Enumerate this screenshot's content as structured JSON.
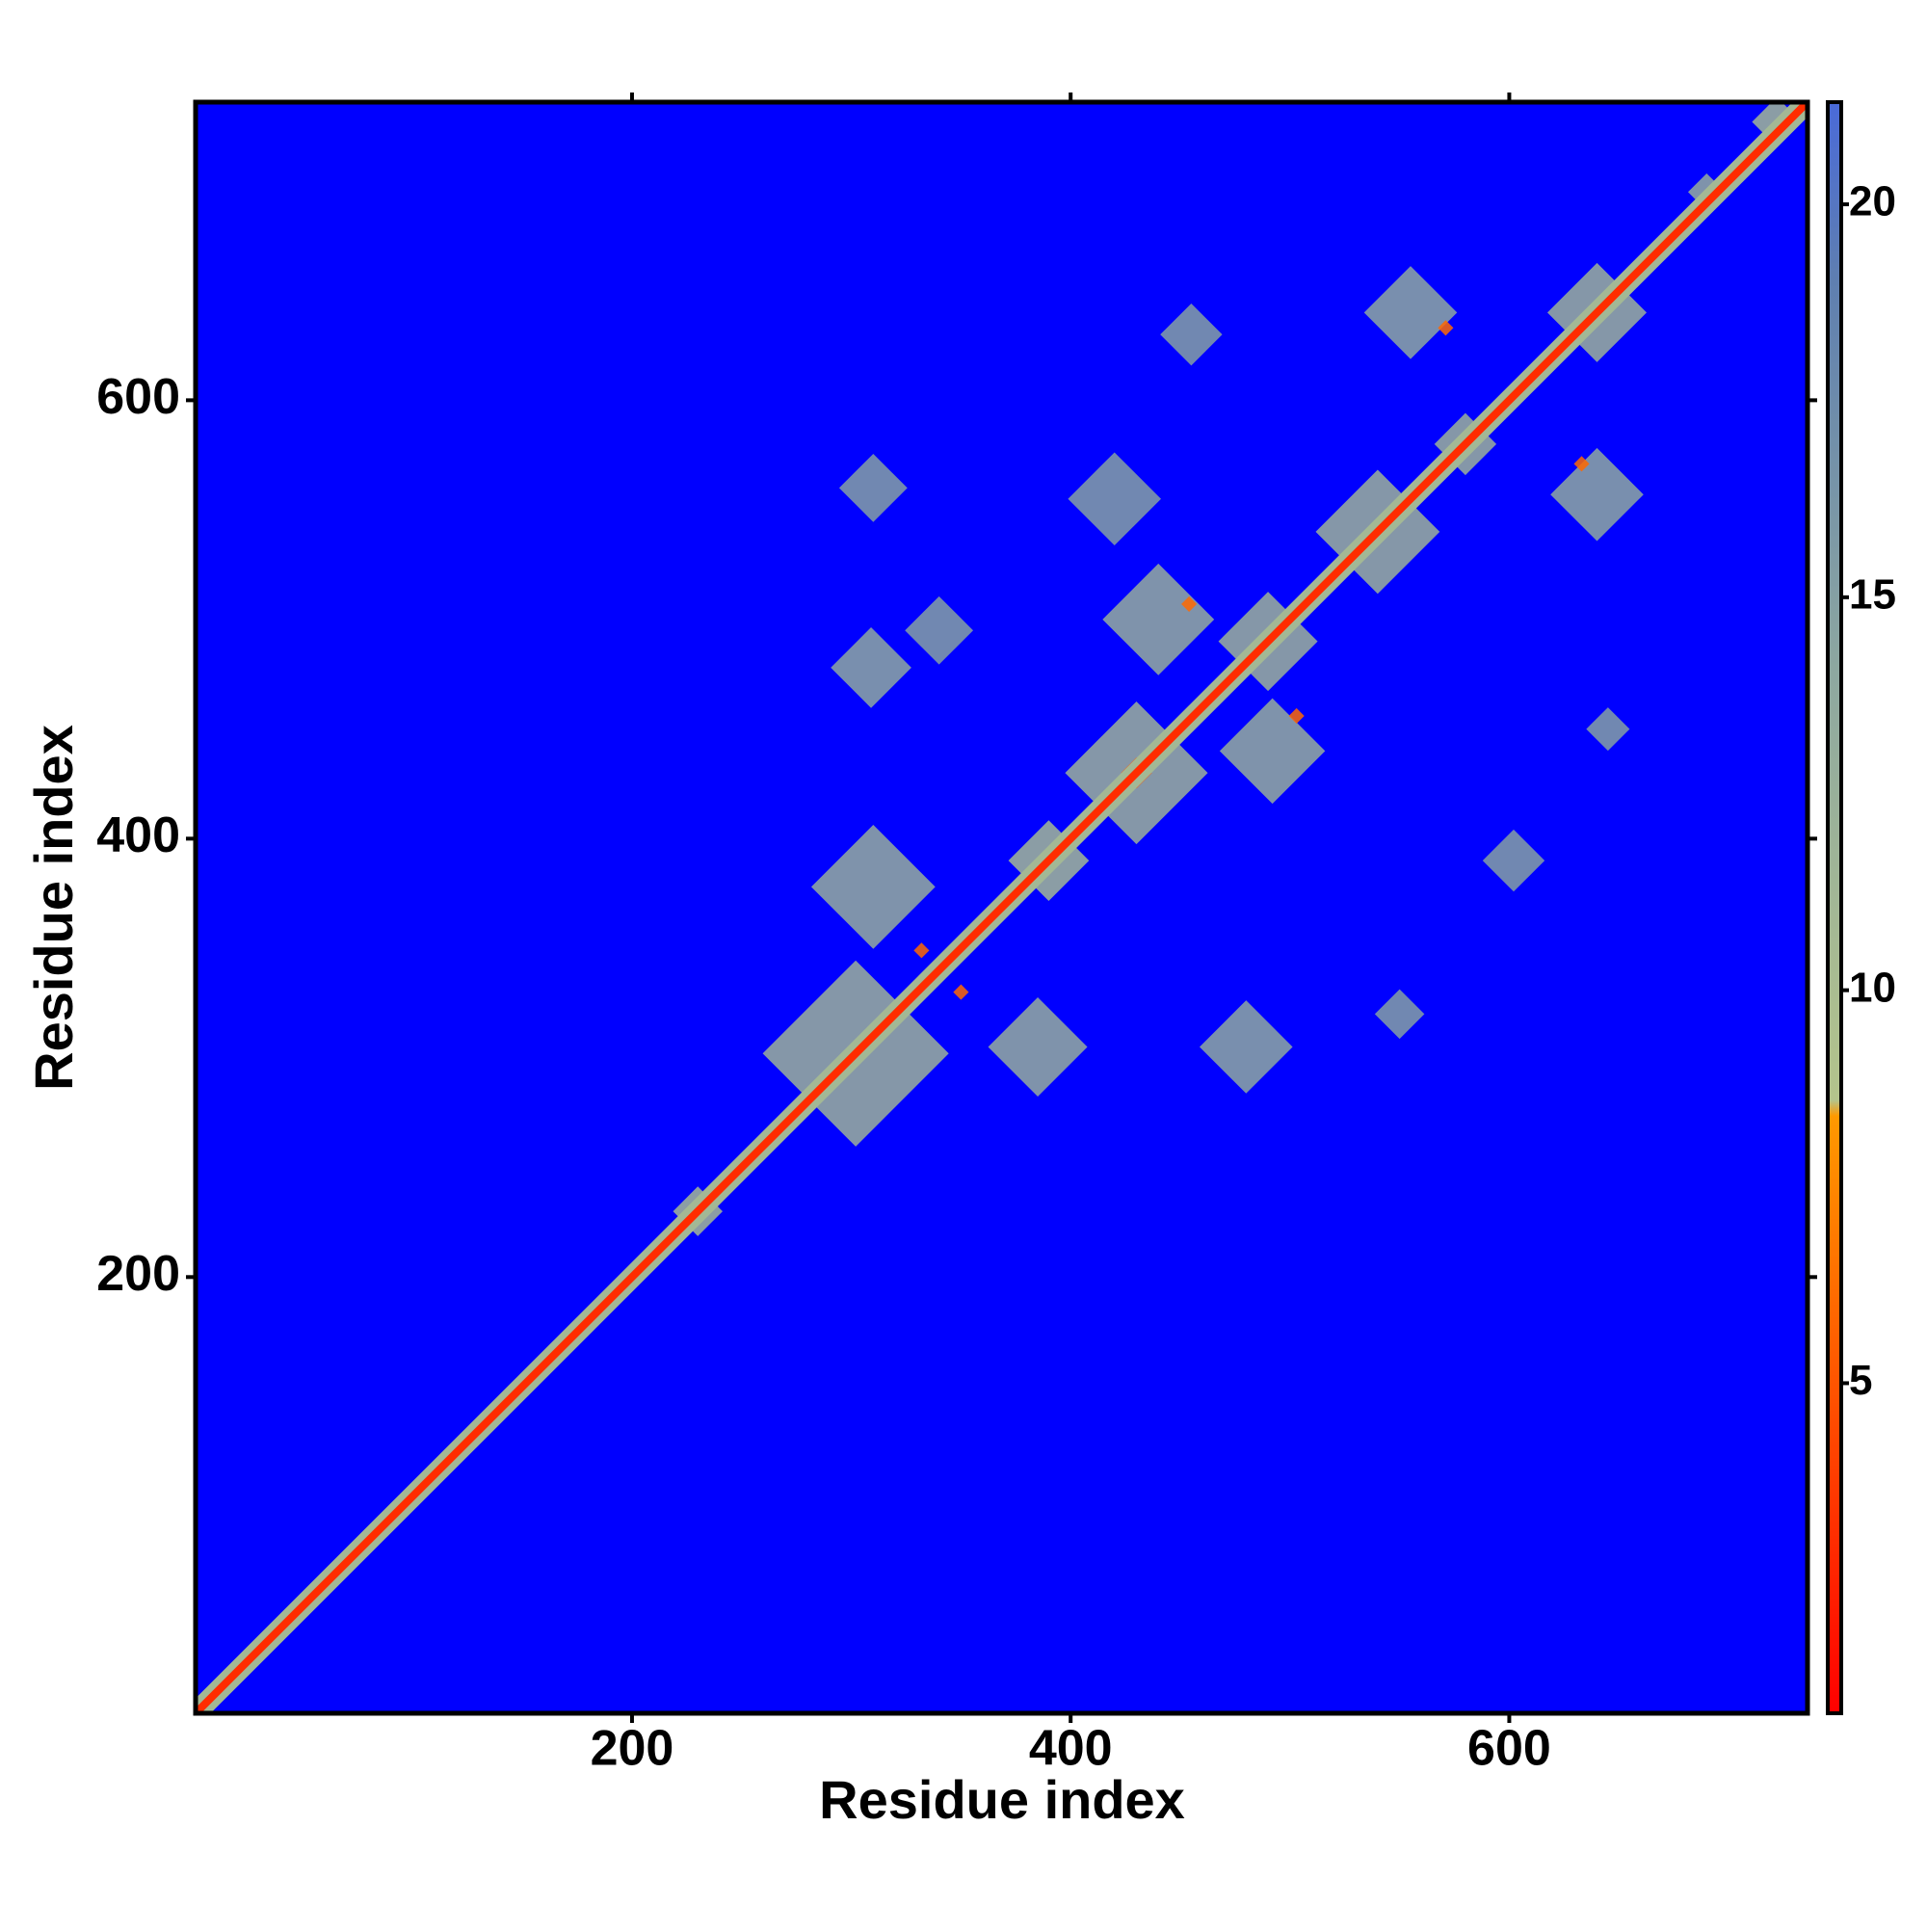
{
  "chart_data": {
    "type": "heatmap",
    "x_label": "Residue index",
    "y_label": "Residue index",
    "xlim": [
      1,
      736
    ],
    "ylim": [
      1,
      736
    ],
    "xticks": [
      200,
      400,
      600
    ],
    "yticks": [
      200,
      400,
      600
    ],
    "background_color": "#0000ff",
    "zlim": [
      0.8,
      21.3
    ],
    "zticks": [
      5,
      10,
      15,
      20
    ],
    "colorscale": [
      [
        0.8,
        "#ff0000"
      ],
      [
        8.4,
        "#ff9900"
      ],
      [
        8.6,
        "#b4c48c"
      ],
      [
        14,
        "#8ea8a0"
      ],
      [
        19,
        "#5f7fb0"
      ],
      [
        21.3,
        "#4a6ad8"
      ]
    ],
    "diagonal": {
      "x": [
        1,
        736
      ],
      "values": [
        11,
        3
      ]
    },
    "x": [
      302,
      230,
      390,
      430,
      490,
      540,
      580,
      640,
      722,
      310,
      385,
      309,
      440,
      492,
      480,
      640,
      555,
      455,
      550,
      310,
      602,
      645,
      420,
      340,
      690,
      300,
      430,
      540,
      454,
      503,
      633,
      571,
      332,
      350
    ],
    "y": [
      302,
      230,
      390,
      430,
      490,
      540,
      580,
      640,
      727,
      378,
      305,
      478,
      500,
      440,
      305,
      557,
      640,
      630,
      320,
      560,
      390,
      450,
      555,
      495,
      695,
      300,
      430,
      540,
      507,
      456,
      571,
      633,
      349,
      330
    ],
    "width": [
      60,
      16,
      26,
      46,
      32,
      40,
      20,
      32,
      16,
      40,
      32,
      26,
      36,
      34,
      30,
      30,
      30,
      20,
      16,
      22,
      20,
      14,
      30,
      22,
      12,
      8,
      10,
      8,
      5,
      5,
      5,
      5,
      5,
      5
    ],
    "values": [
      12,
      11,
      11,
      12,
      12,
      12,
      12,
      12,
      11,
      13,
      13,
      14,
      13,
      13,
      14,
      14,
      14,
      15,
      15,
      15,
      15,
      15,
      15,
      15,
      13,
      5,
      5,
      5,
      6,
      6,
      6,
      6,
      6,
      6
    ]
  }
}
